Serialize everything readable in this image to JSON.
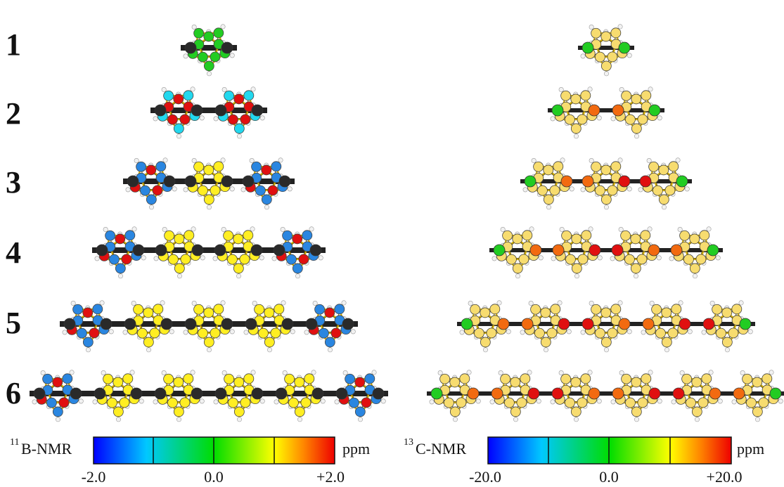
{
  "row_labels": [
    "1",
    "2",
    "3",
    "4",
    "5",
    "6"
  ],
  "left_panel": {
    "colorbar": {
      "mass_number": "11",
      "nucleus": "B-NMR",
      "unit": "ppm",
      "ticks": [
        "-2.0",
        "0.0",
        "+2.0"
      ],
      "range": [
        -2.0,
        2.0
      ]
    }
  },
  "right_panel": {
    "colorbar": {
      "mass_number": "13",
      "nucleus": "C-NMR",
      "unit": "ppm",
      "ticks": [
        "-20.0",
        "0.0",
        "+20.0"
      ],
      "range": [
        -20.0,
        20.0
      ]
    }
  },
  "colors": {
    "black_atom": "#2a2a2a",
    "hydrogen": "#f2f2f2",
    "bond": "#d4b000",
    "red": "#e01010",
    "green": "#22cc22",
    "cyan": "#22d8ee",
    "blue": "#2a86e0",
    "yellow": "#ffee22",
    "pale_yellow": "#f7dc6f",
    "orange": "#f26a10"
  }
}
